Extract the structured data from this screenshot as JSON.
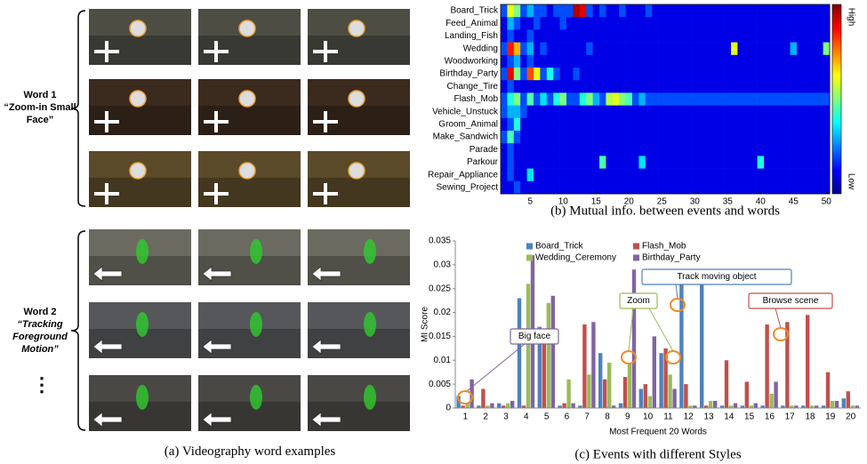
{
  "panel_a": {
    "caption": "(a) Videography word examples",
    "words": [
      {
        "title": "Word 1",
        "name": "“Zoom-in Small Face”"
      },
      {
        "title": "Word 2",
        "name": "“Tracking Foreground Motion”"
      }
    ],
    "more": "⋮"
  },
  "chart_data": [
    {
      "type": "heatmap",
      "caption": "(b) Mutual info. between events and words",
      "categories": [
        "Board_Trick",
        "Feed_Animal",
        "Landing_Fish",
        "Wedding",
        "Woodworking",
        "Birthday_Party",
        "Change_Tire",
        "Flash_Mob",
        "Vehicle_Unstuck",
        "Groom_Animal",
        "Make_Sandwich",
        "Parade",
        "Parkour",
        "Repair_Appliance",
        "Sewing_Project"
      ],
      "x": [
        1,
        2,
        3,
        4,
        5,
        6,
        7,
        8,
        9,
        10,
        11,
        12,
        13,
        14,
        15,
        16,
        17,
        18,
        19,
        20,
        21,
        22,
        23,
        24,
        25,
        26,
        27,
        28,
        29,
        30,
        31,
        32,
        33,
        34,
        35,
        36,
        37,
        38,
        39,
        40,
        41,
        42,
        43,
        44,
        45,
        46,
        47,
        48,
        49,
        50
      ],
      "xlim": [
        0.5,
        50.5
      ],
      "xticks": [
        5,
        10,
        15,
        20,
        25,
        30,
        35,
        40,
        45,
        50
      ],
      "zlim": [
        0,
        1
      ],
      "colorbar_labels": [
        "High",
        "Low"
      ],
      "values": [
        [
          0.2,
          0.6,
          0.5,
          0.2,
          0.3,
          0.2,
          0.2,
          0.1,
          0.2,
          0.2,
          0.2,
          0.95,
          0.9,
          0.2,
          0.1,
          0.2,
          0.1,
          0.1,
          0.2,
          0.1,
          0.1,
          0.1,
          0.2,
          0.1,
          0.1,
          0.1,
          0.1,
          0.1,
          0.1,
          0.1,
          0.1,
          0.1,
          0.1,
          0.1,
          0.1,
          0.1,
          0.1,
          0.1,
          0.1,
          0.1,
          0.1,
          0.1,
          0.1,
          0.1,
          0.1,
          0.1,
          0.1,
          0.1,
          0.1,
          0.1
        ],
        [
          0.1,
          0.3,
          0.2,
          0.1,
          0.1,
          0.2,
          0.1,
          0.1,
          0.1,
          0.2,
          0.1,
          0.1,
          0.1,
          0.1,
          0.1,
          0.1,
          0.1,
          0.1,
          0.1,
          0.1,
          0.1,
          0.1,
          0.1,
          0.1,
          0.1,
          0.1,
          0.1,
          0.1,
          0.1,
          0.1,
          0.1,
          0.1,
          0.1,
          0.1,
          0.1,
          0.1,
          0.1,
          0.1,
          0.1,
          0.1,
          0.1,
          0.1,
          0.1,
          0.1,
          0.1,
          0.1,
          0.1,
          0.1,
          0.1,
          0.1
        ],
        [
          0.1,
          0.2,
          0.1,
          0.1,
          0.2,
          0.1,
          0.1,
          0.1,
          0.1,
          0.1,
          0.1,
          0.1,
          0.1,
          0.1,
          0.1,
          0.1,
          0.1,
          0.1,
          0.1,
          0.1,
          0.1,
          0.1,
          0.1,
          0.1,
          0.1,
          0.1,
          0.1,
          0.1,
          0.1,
          0.1,
          0.1,
          0.1,
          0.1,
          0.1,
          0.1,
          0.1,
          0.1,
          0.1,
          0.1,
          0.1,
          0.1,
          0.1,
          0.1,
          0.1,
          0.1,
          0.1,
          0.1,
          0.1,
          0.1,
          0.1
        ],
        [
          0.2,
          0.85,
          0.7,
          0.2,
          0.3,
          0.1,
          0.2,
          0.1,
          0.1,
          0.1,
          0.1,
          0.1,
          0.1,
          0.2,
          0.1,
          0.1,
          0.1,
          0.1,
          0.1,
          0.1,
          0.1,
          0.1,
          0.1,
          0.1,
          0.1,
          0.1,
          0.1,
          0.1,
          0.1,
          0.1,
          0.1,
          0.1,
          0.1,
          0.1,
          0.1,
          0.6,
          0.1,
          0.1,
          0.1,
          0.1,
          0.1,
          0.1,
          0.1,
          0.1,
          0.3,
          0.1,
          0.1,
          0.1,
          0.1,
          0.5
        ],
        [
          0.1,
          0.2,
          0.3,
          0.1,
          0.2,
          0.1,
          0.1,
          0.1,
          0.1,
          0.1,
          0.1,
          0.1,
          0.1,
          0.1,
          0.1,
          0.1,
          0.1,
          0.1,
          0.1,
          0.1,
          0.1,
          0.1,
          0.1,
          0.1,
          0.1,
          0.1,
          0.1,
          0.1,
          0.1,
          0.1,
          0.1,
          0.1,
          0.1,
          0.1,
          0.1,
          0.1,
          0.1,
          0.1,
          0.1,
          0.1,
          0.1,
          0.1,
          0.1,
          0.1,
          0.1,
          0.1,
          0.1,
          0.1,
          0.1,
          0.1
        ],
        [
          0.2,
          0.9,
          0.5,
          0.2,
          0.8,
          0.6,
          0.2,
          0.4,
          0.2,
          0.1,
          0.1,
          0.2,
          0.1,
          0.1,
          0.1,
          0.1,
          0.1,
          0.1,
          0.1,
          0.1,
          0.1,
          0.1,
          0.1,
          0.1,
          0.1,
          0.1,
          0.1,
          0.1,
          0.1,
          0.1,
          0.1,
          0.1,
          0.1,
          0.1,
          0.1,
          0.1,
          0.1,
          0.1,
          0.1,
          0.1,
          0.1,
          0.1,
          0.1,
          0.1,
          0.1,
          0.1,
          0.1,
          0.1,
          0.1,
          0.1
        ],
        [
          0.1,
          0.2,
          0.1,
          0.1,
          0.1,
          0.1,
          0.1,
          0.1,
          0.1,
          0.1,
          0.1,
          0.1,
          0.1,
          0.1,
          0.1,
          0.1,
          0.1,
          0.1,
          0.1,
          0.1,
          0.1,
          0.1,
          0.1,
          0.1,
          0.1,
          0.1,
          0.1,
          0.1,
          0.1,
          0.1,
          0.1,
          0.1,
          0.1,
          0.1,
          0.1,
          0.1,
          0.1,
          0.1,
          0.1,
          0.1,
          0.1,
          0.1,
          0.1,
          0.1,
          0.1,
          0.1,
          0.1,
          0.1,
          0.1,
          0.1
        ],
        [
          0.2,
          0.4,
          0.5,
          0.2,
          0.45,
          0.2,
          0.35,
          0.2,
          0.4,
          0.5,
          0.2,
          0.2,
          0.4,
          0.5,
          0.3,
          0.2,
          0.55,
          0.6,
          0.5,
          0.45,
          0.2,
          0.3,
          0.2,
          0.2,
          0.2,
          0.2,
          0.2,
          0.2,
          0.2,
          0.2,
          0.2,
          0.2,
          0.2,
          0.2,
          0.2,
          0.2,
          0.2,
          0.2,
          0.2,
          0.2,
          0.2,
          0.2,
          0.2,
          0.2,
          0.2,
          0.2,
          0.2,
          0.2,
          0.2,
          0.2
        ],
        [
          0.2,
          0.3,
          0.3,
          0.2,
          0.1,
          0.1,
          0.1,
          0.1,
          0.1,
          0.1,
          0.1,
          0.1,
          0.1,
          0.1,
          0.1,
          0.1,
          0.1,
          0.1,
          0.1,
          0.1,
          0.1,
          0.1,
          0.1,
          0.1,
          0.1,
          0.1,
          0.1,
          0.1,
          0.1,
          0.1,
          0.1,
          0.1,
          0.1,
          0.1,
          0.1,
          0.1,
          0.1,
          0.1,
          0.1,
          0.1,
          0.1,
          0.1,
          0.1,
          0.1,
          0.1,
          0.1,
          0.1,
          0.1,
          0.1,
          0.1
        ],
        [
          0.1,
          0.2,
          0.4,
          0.1,
          0.1,
          0.1,
          0.1,
          0.1,
          0.1,
          0.1,
          0.1,
          0.1,
          0.1,
          0.1,
          0.1,
          0.1,
          0.1,
          0.1,
          0.1,
          0.1,
          0.1,
          0.1,
          0.1,
          0.1,
          0.1,
          0.1,
          0.1,
          0.1,
          0.1,
          0.1,
          0.1,
          0.1,
          0.1,
          0.1,
          0.1,
          0.1,
          0.1,
          0.1,
          0.1,
          0.1,
          0.1,
          0.1,
          0.1,
          0.1,
          0.1,
          0.1,
          0.1,
          0.1,
          0.1,
          0.1
        ],
        [
          0.2,
          0.45,
          0.2,
          0.1,
          0.1,
          0.1,
          0.1,
          0.1,
          0.1,
          0.1,
          0.1,
          0.1,
          0.1,
          0.1,
          0.1,
          0.1,
          0.1,
          0.1,
          0.1,
          0.1,
          0.1,
          0.1,
          0.1,
          0.1,
          0.1,
          0.1,
          0.1,
          0.1,
          0.1,
          0.1,
          0.1,
          0.1,
          0.1,
          0.1,
          0.1,
          0.1,
          0.1,
          0.1,
          0.1,
          0.1,
          0.1,
          0.1,
          0.1,
          0.1,
          0.1,
          0.1,
          0.1,
          0.1,
          0.1,
          0.1
        ],
        [
          0.1,
          0.2,
          0.1,
          0.1,
          0.1,
          0.1,
          0.1,
          0.1,
          0.1,
          0.1,
          0.1,
          0.1,
          0.1,
          0.1,
          0.1,
          0.1,
          0.1,
          0.1,
          0.1,
          0.1,
          0.1,
          0.1,
          0.1,
          0.1,
          0.1,
          0.1,
          0.1,
          0.1,
          0.1,
          0.1,
          0.1,
          0.1,
          0.1,
          0.1,
          0.1,
          0.1,
          0.1,
          0.1,
          0.1,
          0.1,
          0.1,
          0.1,
          0.1,
          0.1,
          0.1,
          0.1,
          0.1,
          0.1,
          0.1,
          0.1
        ],
        [
          0.1,
          0.2,
          0.1,
          0.1,
          0.1,
          0.1,
          0.1,
          0.1,
          0.1,
          0.1,
          0.1,
          0.1,
          0.1,
          0.1,
          0.1,
          0.45,
          0.1,
          0.1,
          0.1,
          0.1,
          0.1,
          0.35,
          0.1,
          0.1,
          0.1,
          0.1,
          0.1,
          0.1,
          0.1,
          0.1,
          0.1,
          0.1,
          0.1,
          0.1,
          0.1,
          0.1,
          0.1,
          0.1,
          0.1,
          0.4,
          0.1,
          0.1,
          0.1,
          0.1,
          0.1,
          0.1,
          0.1,
          0.1,
          0.1,
          0.1
        ],
        [
          0.1,
          0.2,
          0.1,
          0.1,
          0.35,
          0.1,
          0.1,
          0.1,
          0.1,
          0.1,
          0.1,
          0.1,
          0.1,
          0.1,
          0.1,
          0.1,
          0.1,
          0.1,
          0.1,
          0.1,
          0.1,
          0.1,
          0.1,
          0.1,
          0.1,
          0.1,
          0.1,
          0.1,
          0.1,
          0.1,
          0.1,
          0.1,
          0.1,
          0.1,
          0.1,
          0.1,
          0.1,
          0.1,
          0.1,
          0.1,
          0.1,
          0.1,
          0.1,
          0.1,
          0.1,
          0.1,
          0.1,
          0.1,
          0.1,
          0.1
        ],
        [
          0.1,
          0.1,
          0.2,
          0.1,
          0.1,
          0.1,
          0.1,
          0.1,
          0.1,
          0.1,
          0.1,
          0.1,
          0.1,
          0.1,
          0.1,
          0.1,
          0.1,
          0.1,
          0.1,
          0.1,
          0.1,
          0.1,
          0.1,
          0.1,
          0.1,
          0.1,
          0.1,
          0.1,
          0.1,
          0.1,
          0.1,
          0.1,
          0.1,
          0.1,
          0.1,
          0.1,
          0.1,
          0.1,
          0.1,
          0.1,
          0.1,
          0.1,
          0.1,
          0.1,
          0.1,
          0.1,
          0.1,
          0.1,
          0.1,
          0.1
        ]
      ]
    },
    {
      "type": "bar",
      "caption": "(c) Events with different Styles",
      "x_label": "Most Frequent 20 Words",
      "y_label": "MI Score",
      "categories": [
        "1",
        "2",
        "3",
        "4",
        "5",
        "6",
        "7",
        "8",
        "9",
        "10",
        "11",
        "12",
        "13",
        "14",
        "15",
        "16",
        "17",
        "18",
        "19",
        "20"
      ],
      "ylim": [
        0,
        0.035
      ],
      "yticks": [
        0,
        0.005,
        0.01,
        0.015,
        0.02,
        0.025,
        0.03,
        0.035
      ],
      "series": [
        {
          "name": "Board_Trick",
          "color": "#4f81bd",
          "values": [
            0.0025,
            0.0005,
            0.001,
            0.023,
            0.017,
            0.0005,
            0.0005,
            0.0115,
            0.001,
            0.004,
            0.0115,
            0.029,
            0.0285,
            0.0005,
            0.0005,
            0.0005,
            0.0005,
            0.0005,
            0.0005,
            0.002
          ]
        },
        {
          "name": "Flash_Mob",
          "color": "#c0504d",
          "values": [
            0.0005,
            0.004,
            0.0005,
            0.0005,
            0.015,
            0.001,
            0.0175,
            0.006,
            0.0065,
            0.005,
            0.0125,
            0.005,
            0.0005,
            0.01,
            0.0055,
            0.0175,
            0.018,
            0.0195,
            0.0075,
            0.0035
          ]
        },
        {
          "name": "Wedding_Ceremony",
          "color": "#9bbb59",
          "values": [
            0.001,
            0.0005,
            0.001,
            0.026,
            0.022,
            0.006,
            0.007,
            0.0095,
            0.0095,
            0.0025,
            0.007,
            0.0005,
            0.0015,
            0.0005,
            0.0005,
            0.003,
            0.0005,
            0.0005,
            0.0015,
            0.0005
          ]
        },
        {
          "name": "Birthday_Party",
          "color": "#8064a2",
          "values": [
            0.006,
            0.001,
            0.0015,
            0.032,
            0.0235,
            0.001,
            0.018,
            0.0005,
            0.029,
            0.015,
            0.004,
            0.0005,
            0.0015,
            0.001,
            0.001,
            0.0055,
            0.0005,
            0.0005,
            0.0015,
            0.0005
          ]
        }
      ],
      "annotations": [
        {
          "text": "Track moving object",
          "color": "#4f81bd"
        },
        {
          "text": "Browse scene",
          "color": "#c0504d"
        },
        {
          "text": "Zoom",
          "color": "#9bbb59"
        },
        {
          "text": "Big face",
          "color": "#8064a2"
        }
      ]
    }
  ]
}
